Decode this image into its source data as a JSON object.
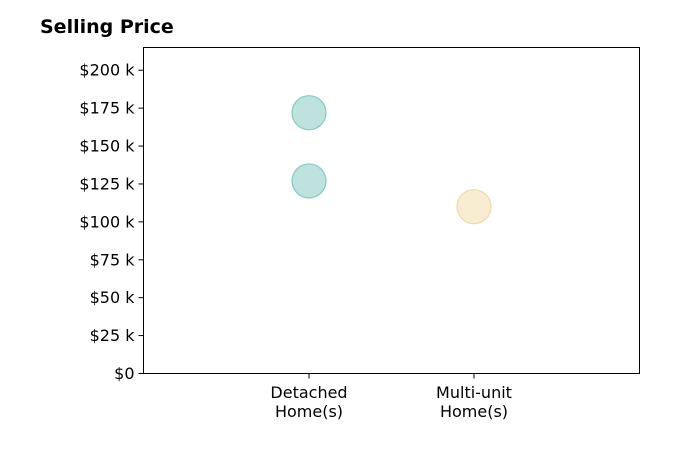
{
  "chart_data": {
    "type": "scatter",
    "title": "Selling Price",
    "xlabel": "",
    "ylabel": "",
    "categories": [
      [
        "Detached",
        "Home(s)"
      ],
      [
        "Multi-unit",
        "Home(s)"
      ]
    ],
    "ylim": [
      0,
      215000
    ],
    "yticks": [
      {
        "value": 0,
        "label": "$0"
      },
      {
        "value": 25000,
        "label": "$25 k"
      },
      {
        "value": 50000,
        "label": "$50 k"
      },
      {
        "value": 75000,
        "label": "$75 k"
      },
      {
        "value": 100000,
        "label": "$100 k"
      },
      {
        "value": 125000,
        "label": "$125 k"
      },
      {
        "value": 150000,
        "label": "$150 k"
      },
      {
        "value": 175000,
        "label": "$175 k"
      },
      {
        "value": 200000,
        "label": "$200 k"
      }
    ],
    "points": [
      {
        "category": 0,
        "value": 172000,
        "color": "#a8dad3",
        "stroke": "#88c9c0"
      },
      {
        "category": 0,
        "value": 127000,
        "color": "#a8dad3",
        "stroke": "#88c9c0"
      },
      {
        "category": 1,
        "value": 110000,
        "color": "#f6e6c4",
        "stroke": "#efd9aa"
      }
    ],
    "grid": false,
    "legend": "none"
  }
}
